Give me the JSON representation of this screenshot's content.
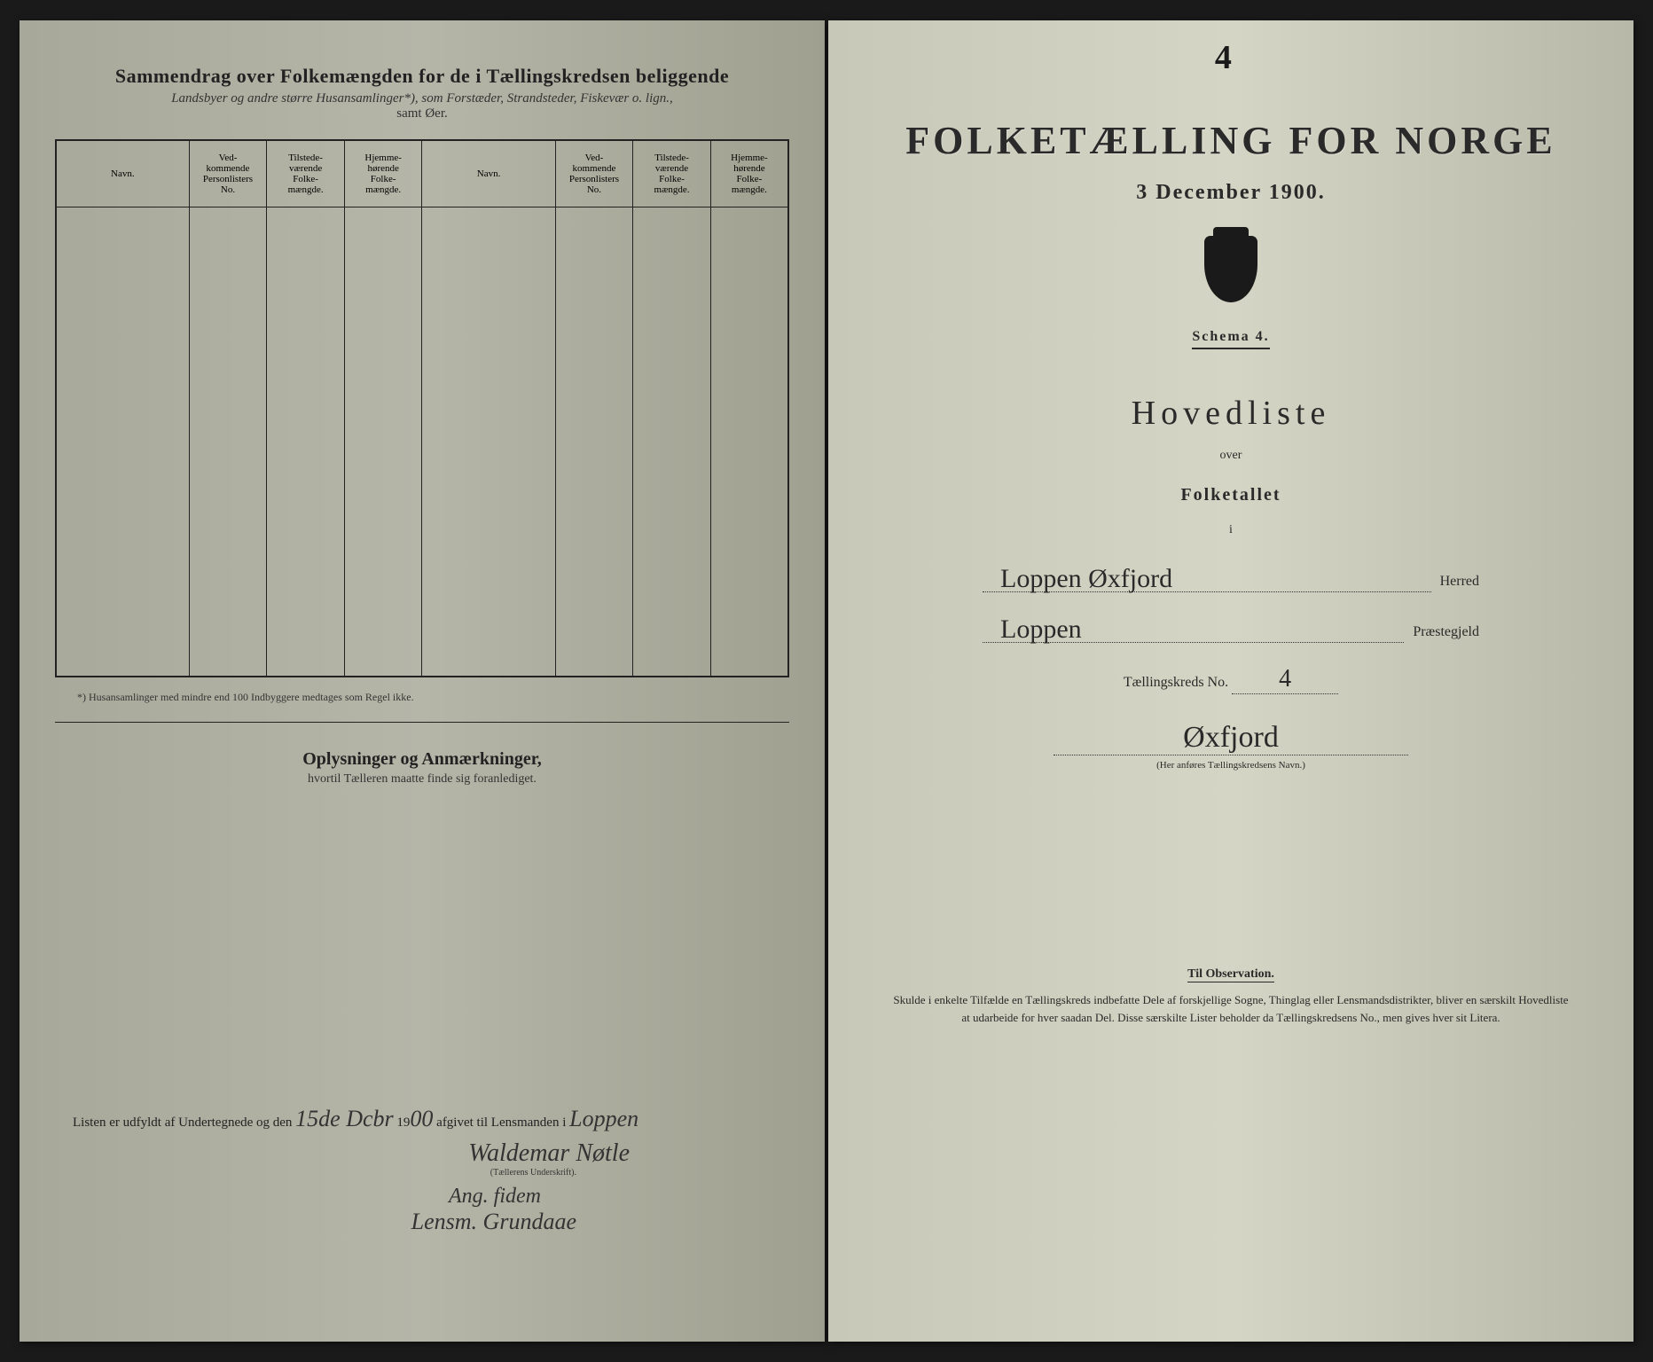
{
  "left": {
    "title": "Sammendrag over Folkemængden for de i Tællingskredsen beliggende",
    "subtitle_italic": "Landsbyer og andre større Husansamlinger*), som Forstæder, Strandsteder, Fiskevær o. lign.,",
    "subtitle2": "samt Øer.",
    "columns": {
      "navn": "Navn.",
      "vedk": "Ved-\nkommende\nPersonlisters\nNo.",
      "tilstede": "Tilstede-\nværende\nFolke-\nmængde.",
      "hjemme": "Hjemme-\nhørende\nFolke-\nmængde."
    },
    "footnote": "*) Husansamlinger med mindre end 100 Indbyggere medtages som Regel ikke.",
    "oplysninger": "Oplysninger og Anmærkninger,",
    "oplysninger_sub": "hvortil Tælleren maatte finde sig foranlediget.",
    "bottom_pre": "Listen er udfyldt af Undertegnede og den",
    "bottom_date": "15de Dcbr",
    "bottom_mid": "19",
    "bottom_year": "00",
    "bottom_post": "afgivet til Lensmanden i",
    "bottom_place": "Loppen",
    "signature": "Waldemar Nøtle",
    "sig_caption": "(Tællerens Underskrift).",
    "extra_sig1": "Ang. fidem",
    "extra_sig2": "Lensm. Grundaae"
  },
  "right": {
    "mark": "4",
    "banner": "FOLKETÆLLING FOR NORGE",
    "date": "3 December 1900.",
    "schema": "Schema 4.",
    "hovedliste": "Hovedliste",
    "over": "over",
    "folketallet": "Folketallet",
    "i": "i",
    "herred_val": "Loppen Øxfjord",
    "herred_lbl": "Herred",
    "praeste_val": "Loppen",
    "praeste_lbl": "Præstegjeld",
    "kreds_pre": "Tællingskreds No.",
    "kreds_no": "4",
    "kreds_name": "Øxfjord",
    "kreds_caption": "(Her anføres Tællingskredsens Navn.)",
    "obs_title": "Til Observation.",
    "obs_text": "Skulde i enkelte Tilfælde en Tællingskreds indbefatte Dele af forskjellige Sogne, Thinglag eller Lensmandsdistrikter, bliver en særskilt Hovedliste at udarbeide for hver saadan Del. Disse særskilte Lister beholder da Tællingskredsens No., men gives hver sit Litera."
  },
  "colors": {
    "ink": "#222222",
    "paper_left": "#b0b0a0",
    "paper_right": "#d0d0c0"
  }
}
